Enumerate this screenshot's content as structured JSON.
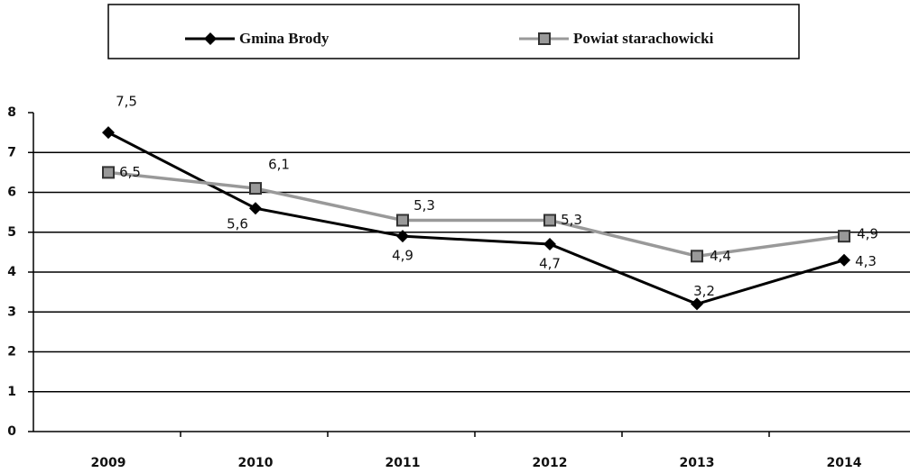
{
  "chart_data": {
    "type": "line",
    "categories": [
      "2009",
      "2010",
      "2011",
      "2012",
      "2013",
      "2014"
    ],
    "series": [
      {
        "name": "Gmina Brody",
        "color": "#000000",
        "marker": "diamond",
        "values": [
          7.5,
          5.6,
          4.9,
          4.7,
          3.2,
          4.3
        ],
        "value_labels": [
          "7,5",
          "5,6",
          "4,9",
          "4,7",
          "3,2",
          "4,3"
        ]
      },
      {
        "name": "Powiat starachowicki",
        "color": "#999999",
        "marker": "square",
        "values": [
          6.5,
          6.1,
          5.3,
          5.3,
          4.4,
          4.9
        ],
        "value_labels": [
          "6,5",
          "6,1",
          "5,3",
          "5,3",
          "4,4",
          "4,9"
        ]
      }
    ],
    "ylim": [
      0,
      8
    ],
    "yticks": [
      0,
      1,
      2,
      3,
      4,
      5,
      6,
      7,
      8
    ],
    "grid": true,
    "legend": "top"
  }
}
